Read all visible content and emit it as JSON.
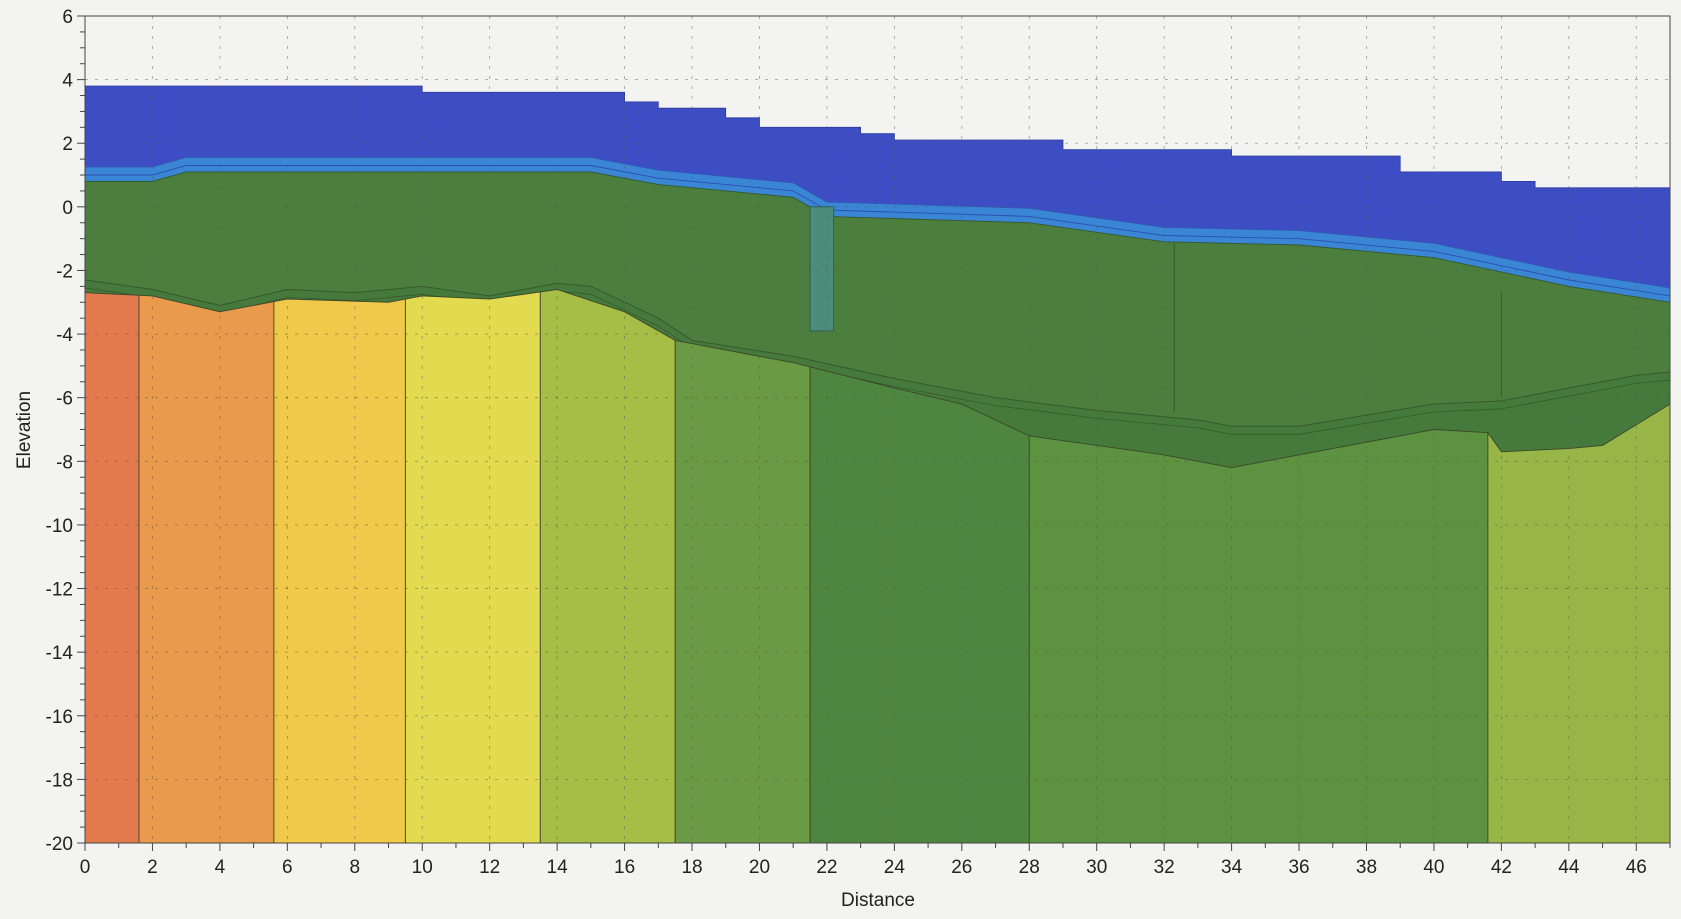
{
  "chart_data": {
    "type": "area",
    "title": "",
    "xlabel": "Distance",
    "ylabel": "Elevation",
    "xlim": [
      0,
      47
    ],
    "ylim": [
      -20,
      6
    ],
    "x_ticks": [
      0,
      2,
      4,
      6,
      8,
      10,
      12,
      14,
      16,
      18,
      20,
      22,
      24,
      26,
      28,
      30,
      32,
      34,
      36,
      38,
      40,
      42,
      44,
      46
    ],
    "y_ticks": [
      6,
      4,
      2,
      0,
      -2,
      -4,
      -6,
      -8,
      -10,
      -12,
      -14,
      -16,
      -18,
      -20
    ],
    "grid": "dashed",
    "water_surface": [
      [
        0,
        3.8
      ],
      [
        10,
        3.8
      ],
      [
        10,
        3.6
      ],
      [
        16,
        3.6
      ],
      [
        16,
        3.3
      ],
      [
        17,
        3.3
      ],
      [
        17,
        3.1
      ],
      [
        19,
        3.1
      ],
      [
        19,
        2.8
      ],
      [
        20,
        2.8
      ],
      [
        20,
        2.5
      ],
      [
        23,
        2.5
      ],
      [
        23,
        2.3
      ],
      [
        24,
        2.3
      ],
      [
        24,
        2.1
      ],
      [
        29,
        2.1
      ],
      [
        29,
        1.8
      ],
      [
        34,
        1.8
      ],
      [
        34,
        1.6
      ],
      [
        39,
        1.6
      ],
      [
        39,
        1.1
      ],
      [
        42,
        1.1
      ],
      [
        42,
        0.8
      ],
      [
        43,
        0.8
      ],
      [
        43,
        0.6
      ],
      [
        47,
        0.6
      ]
    ],
    "bed_surface": [
      [
        0,
        0.8
      ],
      [
        2,
        0.8
      ],
      [
        3,
        1.1
      ],
      [
        15,
        1.1
      ],
      [
        17,
        0.7
      ],
      [
        21,
        0.3
      ],
      [
        22,
        -0.3
      ],
      [
        28,
        -0.5
      ],
      [
        32,
        -1.1
      ],
      [
        36,
        -1.2
      ],
      [
        40,
        -1.6
      ],
      [
        44,
        -2.5
      ],
      [
        47,
        -3.0
      ]
    ],
    "channel_feature": {
      "x": [
        21.5,
        22.2
      ],
      "y_bottom": -3.9
    },
    "upper_layer_bottom": [
      [
        0,
        -2.3
      ],
      [
        2,
        -2.6
      ],
      [
        4,
        -3.1
      ],
      [
        6,
        -2.6
      ],
      [
        8,
        -2.7
      ],
      [
        10,
        -2.5
      ],
      [
        12,
        -2.8
      ],
      [
        14,
        -2.4
      ],
      [
        15,
        -2.5
      ],
      [
        17,
        -3.5
      ],
      [
        18,
        -4.2
      ],
      [
        21,
        -4.7
      ],
      [
        24,
        -5.4
      ],
      [
        27,
        -6.0
      ],
      [
        30,
        -6.4
      ],
      [
        33,
        -6.7
      ],
      [
        34,
        -6.9
      ],
      [
        36,
        -6.9
      ],
      [
        40,
        -6.2
      ],
      [
        42,
        -6.1
      ],
      [
        44,
        -5.7
      ],
      [
        46,
        -5.3
      ],
      [
        47,
        -5.2
      ]
    ],
    "deep_boundary": [
      [
        0,
        -2.7
      ],
      [
        2,
        -2.8
      ],
      [
        4,
        -3.3
      ],
      [
        6,
        -2.9
      ],
      [
        9,
        -3.0
      ],
      [
        10,
        -2.8
      ],
      [
        12,
        -2.9
      ],
      [
        14,
        -2.6
      ],
      [
        16,
        -3.3
      ],
      [
        17.5,
        -4.2
      ],
      [
        21,
        -4.9
      ],
      [
        24,
        -5.7
      ],
      [
        26,
        -6.2
      ],
      [
        28,
        -7.2
      ],
      [
        32,
        -7.8
      ],
      [
        34,
        -8.2
      ],
      [
        36,
        -7.8
      ],
      [
        38,
        -7.4
      ],
      [
        40,
        -7.0
      ],
      [
        41.6,
        -7.1
      ],
      [
        42,
        -7.7
      ],
      [
        44,
        -7.6
      ],
      [
        45,
        -7.5
      ],
      [
        47,
        -6.2
      ]
    ],
    "series": [
      {
        "x_range": [
          0,
          1.6
        ],
        "color": "#e27a4e"
      },
      {
        "x_range": [
          1.6,
          5.6
        ],
        "color": "#ea9a4d"
      },
      {
        "x_range": [
          5.6,
          9.5
        ],
        "color": "#f0c84a"
      },
      {
        "x_range": [
          9.5,
          13.5
        ],
        "color": "#e2db50"
      },
      {
        "x_range": [
          13.5,
          17.5
        ],
        "color": "#a6bd46"
      },
      {
        "x_range": [
          17.5,
          21.5
        ],
        "color": "#6a9a44"
      },
      {
        "x_range": [
          21.5,
          28
        ],
        "color": "#4f863f"
      },
      {
        "x_range": [
          28,
          41.6
        ],
        "color": "#5d9240"
      },
      {
        "x_range": [
          41.6,
          47
        ],
        "color": "#98b647"
      }
    ],
    "colors": {
      "water": "#3d4ec4",
      "water_band": "#3a86d4",
      "upper_layer": "#4c7f3e",
      "mid_band": "#467a3c",
      "channel": "#4c8c7a"
    }
  }
}
